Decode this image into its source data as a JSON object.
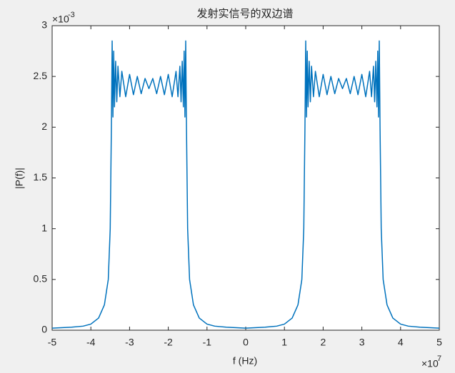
{
  "chart_data": {
    "type": "line",
    "title": "发射实信号的双边谱",
    "x_label": "f (Hz)",
    "y_label": "|P(f)|",
    "x_scale_base": "×10",
    "x_scale_exponent": "7",
    "y_scale_base": "×10",
    "y_scale_exponent": "-3",
    "color": "#0072bd",
    "x": [
      -5,
      -4.5,
      -4.2,
      -4,
      -3.8,
      -3.65,
      -3.55,
      -3.5,
      -3.47,
      -3.45,
      -3.43,
      -3.41,
      -3.39,
      -3.36,
      -3.33,
      -3.3,
      -3.25,
      -3.2,
      -3.1,
      -3.0,
      -2.9,
      -2.8,
      -2.7,
      -2.6,
      -2.5,
      -2.4,
      -2.3,
      -2.2,
      -2.1,
      -2.0,
      -1.9,
      -1.8,
      -1.75,
      -1.7,
      -1.67,
      -1.64,
      -1.61,
      -1.59,
      -1.57,
      -1.55,
      -1.53,
      -1.5,
      -1.45,
      -1.35,
      -1.2,
      -1,
      -0.8,
      -0.5,
      0,
      0.5,
      0.8,
      1,
      1.2,
      1.35,
      1.45,
      1.5,
      1.53,
      1.55,
      1.57,
      1.59,
      1.61,
      1.64,
      1.67,
      1.7,
      1.75,
      1.8,
      1.9,
      2.0,
      2.1,
      2.2,
      2.3,
      2.4,
      2.5,
      2.6,
      2.7,
      2.8,
      2.9,
      3.0,
      3.1,
      3.2,
      3.25,
      3.3,
      3.33,
      3.36,
      3.39,
      3.41,
      3.43,
      3.45,
      3.47,
      3.5,
      3.55,
      3.65,
      3.8,
      4,
      4.2,
      4.5,
      5
    ],
    "values": [
      0.02,
      0.03,
      0.04,
      0.06,
      0.12,
      0.25,
      0.5,
      1.0,
      2.0,
      2.85,
      2.1,
      2.75,
      2.2,
      2.65,
      2.25,
      2.6,
      2.3,
      2.55,
      2.3,
      2.52,
      2.32,
      2.5,
      2.33,
      2.48,
      2.38,
      2.48,
      2.33,
      2.5,
      2.32,
      2.52,
      2.3,
      2.55,
      2.3,
      2.6,
      2.25,
      2.65,
      2.2,
      2.75,
      2.1,
      2.85,
      2.0,
      1.0,
      0.5,
      0.25,
      0.12,
      0.06,
      0.04,
      0.03,
      0.02,
      0.03,
      0.04,
      0.06,
      0.12,
      0.25,
      0.5,
      1.0,
      2.0,
      2.85,
      2.1,
      2.75,
      2.2,
      2.65,
      2.25,
      2.6,
      2.3,
      2.55,
      2.3,
      2.52,
      2.32,
      2.5,
      2.33,
      2.48,
      2.38,
      2.48,
      2.33,
      2.5,
      2.32,
      2.52,
      2.3,
      2.55,
      2.3,
      2.6,
      2.25,
      2.65,
      2.2,
      2.75,
      2.1,
      2.85,
      2.0,
      1.0,
      0.5,
      0.25,
      0.12,
      0.06,
      0.04,
      0.03,
      0.02
    ],
    "xlim": [
      -5,
      5
    ],
    "xticks": [
      -5,
      -4,
      -3,
      -2,
      -1,
      0,
      1,
      2,
      3,
      4,
      5
    ],
    "ylim": [
      0,
      3
    ],
    "yticks": [
      0,
      0.5,
      1,
      1.5,
      2,
      2.5,
      3
    ]
  }
}
